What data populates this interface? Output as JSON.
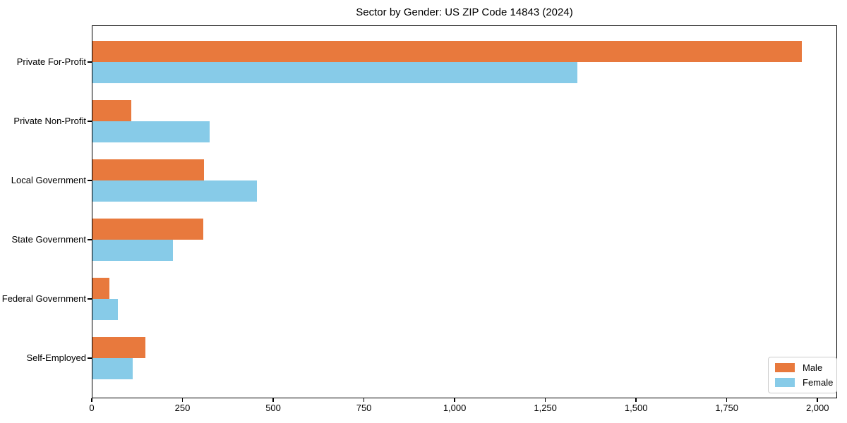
{
  "chart_data": {
    "type": "bar",
    "orientation": "horizontal",
    "title": "Sector by Gender: US ZIP Code 14843 (2024)",
    "xlabel": "",
    "ylabel": "",
    "categories": [
      "Private For-Profit",
      "Private Non-Profit",
      "Local Government",
      "State Government",
      "Federal Government",
      "Self-Employed"
    ],
    "series": [
      {
        "name": "Male",
        "color": "#E8793D",
        "values": [
          1955,
          107,
          307,
          305,
          47,
          146
        ]
      },
      {
        "name": "Female",
        "color": "#87CBE8",
        "values": [
          1337,
          323,
          453,
          222,
          70,
          111
        ]
      }
    ],
    "xlim": [
      0,
      2054
    ],
    "xticks": [
      0,
      250,
      500,
      750,
      1000,
      1250,
      1500,
      1750,
      2000
    ],
    "xtick_labels": [
      "0",
      "250",
      "500",
      "750",
      "1,000",
      "1,250",
      "1,500",
      "1,750",
      "2,000"
    ],
    "grid": false,
    "legend": {
      "position": "lower right"
    }
  }
}
